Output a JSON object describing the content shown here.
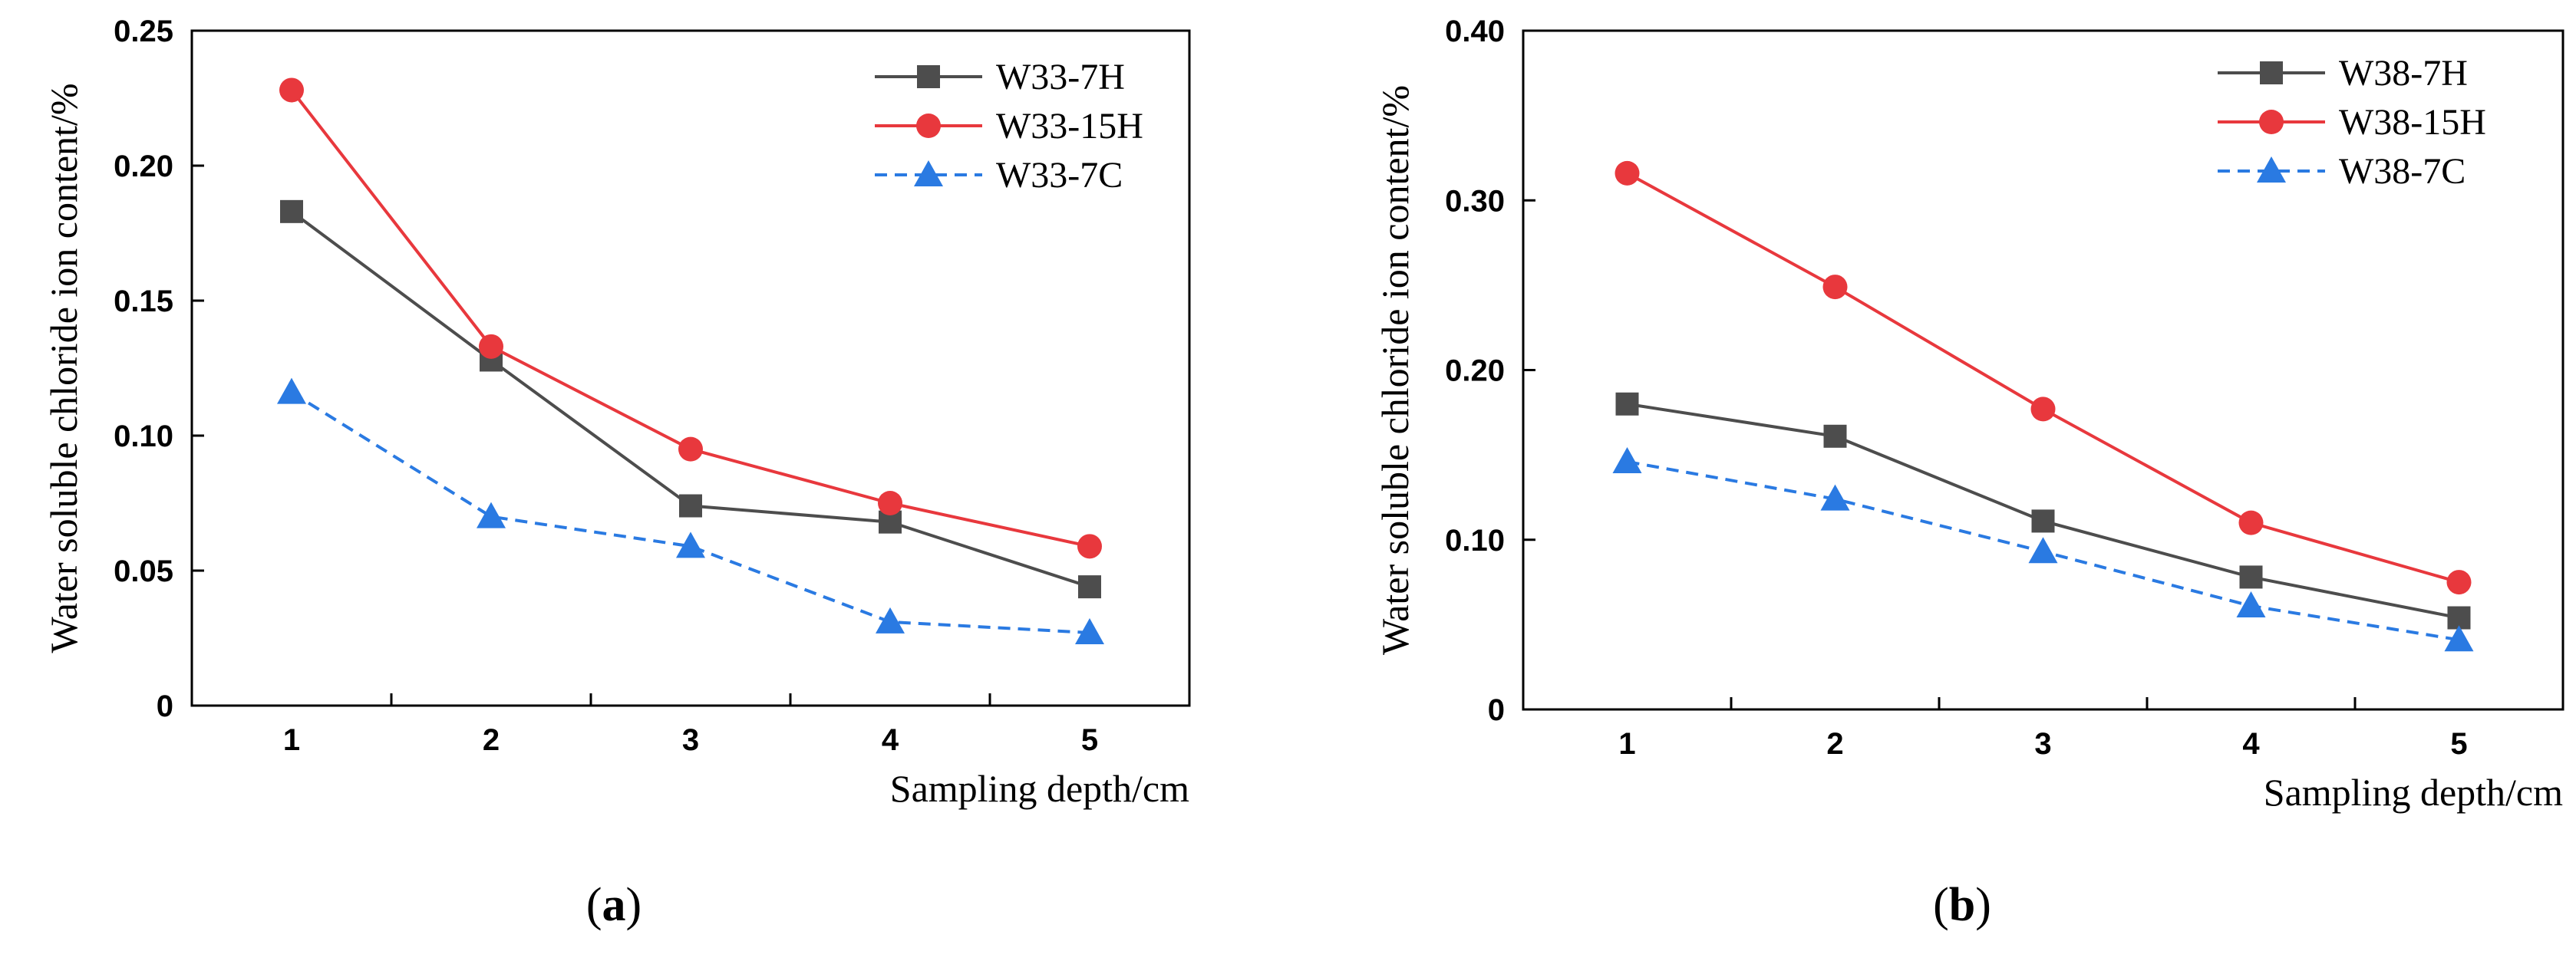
{
  "figure": {
    "panels": [
      {
        "letter": "a",
        "open": "(",
        "close": ")"
      },
      {
        "letter": "b",
        "open": "(",
        "close": ")"
      }
    ]
  },
  "colors": {
    "W7H": "#4d4d4d",
    "W15H": "#e8383d",
    "W7C": "#2a7ae2",
    "axis": "#000000"
  },
  "chart_data": [
    {
      "type": "line",
      "panel": "a",
      "title": "",
      "xlabel": "Sampling depth/cm",
      "ylabel": "Water soluble chloride ion content/%",
      "categories": [
        "1",
        "2",
        "3",
        "4",
        "5"
      ],
      "x": [
        1,
        2,
        3,
        4,
        5
      ],
      "xlim": [
        0.5,
        5.5
      ],
      "ylim": [
        0,
        0.25
      ],
      "yticks": [
        0,
        0.05,
        0.1,
        0.15,
        0.2,
        0.25
      ],
      "ytick_labels": [
        "0",
        "0.05",
        "0.10",
        "0.15",
        "0.20",
        "0.25"
      ],
      "legend": "top-right",
      "series": [
        {
          "name": "W33-7H",
          "values": [
            0.183,
            0.128,
            0.074,
            0.068,
            0.044
          ],
          "color": "#4d4d4d",
          "marker": "square",
          "dash": "solid"
        },
        {
          "name": "W33-15H",
          "values": [
            0.228,
            0.133,
            0.095,
            0.075,
            0.059
          ],
          "color": "#e8383d",
          "marker": "circle",
          "dash": "solid"
        },
        {
          "name": "W33-7C",
          "values": [
            0.116,
            0.07,
            0.059,
            0.031,
            0.027
          ],
          "color": "#2a7ae2",
          "marker": "triangle",
          "dash": "dashed"
        }
      ]
    },
    {
      "type": "line",
      "panel": "b",
      "title": "",
      "xlabel": "Sampling depth/cm",
      "ylabel": "Water soluble chloride ion content/%",
      "categories": [
        "1",
        "2",
        "3",
        "4",
        "5"
      ],
      "x": [
        1,
        2,
        3,
        4,
        5
      ],
      "xlim": [
        0.5,
        5.5
      ],
      "ylim": [
        0,
        0.4
      ],
      "yticks": [
        0,
        0.1,
        0.2,
        0.3,
        0.4
      ],
      "ytick_labels": [
        "0",
        "0.10",
        "0.20",
        "0.30",
        "0.40"
      ],
      "legend": "top-right",
      "series": [
        {
          "name": "W38-7H",
          "values": [
            0.18,
            0.161,
            0.111,
            0.078,
            0.054
          ],
          "color": "#4d4d4d",
          "marker": "square",
          "dash": "solid"
        },
        {
          "name": "W38-15H",
          "values": [
            0.316,
            0.249,
            0.177,
            0.11,
            0.075
          ],
          "color": "#e8383d",
          "marker": "circle",
          "dash": "solid"
        },
        {
          "name": "W38-7C",
          "values": [
            0.146,
            0.124,
            0.093,
            0.061,
            0.041
          ],
          "color": "#2a7ae2",
          "marker": "triangle",
          "dash": "dashed"
        }
      ]
    }
  ]
}
